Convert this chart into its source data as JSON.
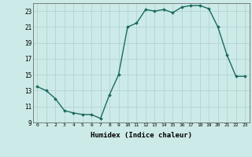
{
  "x": [
    0,
    1,
    2,
    3,
    4,
    5,
    6,
    7,
    8,
    9,
    10,
    11,
    12,
    13,
    14,
    15,
    16,
    17,
    18,
    19,
    20,
    21,
    22,
    23
  ],
  "y": [
    13.5,
    13.0,
    12.0,
    10.5,
    10.2,
    10.0,
    10.0,
    9.5,
    12.5,
    15.0,
    21.0,
    21.5,
    23.2,
    23.0,
    23.2,
    22.8,
    23.5,
    23.7,
    23.7,
    23.3,
    21.0,
    17.5,
    14.8,
    14.8
  ],
  "xlim": [
    -0.5,
    23.5
  ],
  "ylim": [
    9,
    24
  ],
  "yticks": [
    9,
    11,
    13,
    15,
    17,
    19,
    21,
    23
  ],
  "xticks": [
    0,
    1,
    2,
    3,
    4,
    5,
    6,
    7,
    8,
    9,
    10,
    11,
    12,
    13,
    14,
    15,
    16,
    17,
    18,
    19,
    20,
    21,
    22,
    23
  ],
  "xlabel": "Humidex (Indice chaleur)",
  "line_color": "#1a6b5e",
  "marker": "D",
  "marker_size": 1.8,
  "bg_color": "#cceae7",
  "grid_color_major": "#b0d0cc",
  "grid_color_minor": "#c8e4e0"
}
